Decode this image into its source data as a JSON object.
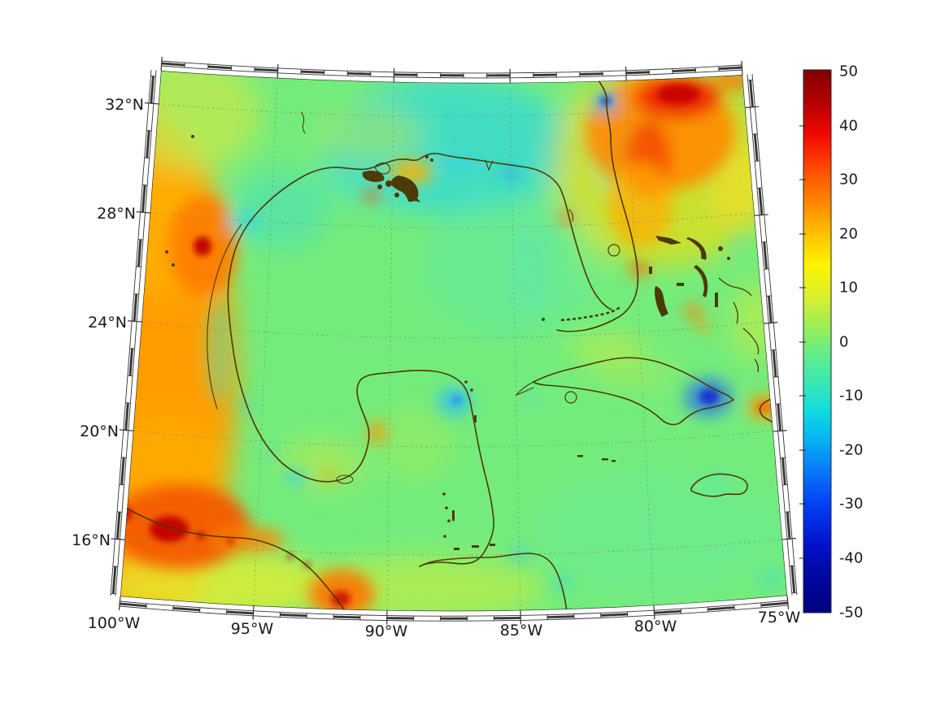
{
  "chart_data": {
    "type": "heatmap",
    "title": "",
    "region": "Gulf of Mexico, western Caribbean and adjacent land areas",
    "projection": "conic (curved graticule, fan-shaped frame)",
    "x_axis": {
      "ticks": [
        "100°W",
        "95°W",
        "90°W",
        "85°W",
        "80°W",
        "75°W"
      ],
      "range_deg_west": [
        100,
        75
      ],
      "grid": true
    },
    "y_axis": {
      "ticks": [
        "16°N",
        "20°N",
        "24°N",
        "28°N",
        "32°N"
      ],
      "range_deg_north": [
        14,
        33.5
      ],
      "grid": true
    },
    "colorbar": {
      "min": -50,
      "max": 50,
      "ticks": [
        50,
        40,
        30,
        20,
        10,
        0,
        -10,
        -20,
        -30,
        -40,
        -50
      ],
      "colormap": "jet",
      "orientation": "vertical",
      "position": "right"
    },
    "field_summary": [
      {
        "feature": "background field over most of Gulf and Caribbean",
        "value": "-5 to +5 (green)"
      },
      {
        "feature": "strong positive anomaly in NW Atlantic east of Georgia / north Florida (~79°W, 31°N)",
        "value": "+30 to +45"
      },
      {
        "feature": "positive band along western map edge over inland Mexico (~99-100°W)",
        "value": "+15 to +30"
      },
      {
        "feature": "intense positive spot on NE Mexico coast (~97.5°W, 26.5°N)",
        "value": "+40"
      },
      {
        "feature": "intense positive blob over southern Mexico / Guatemala (~98°W, 15.5°N)",
        "value": "+35 to +50"
      },
      {
        "feature": "positive spot on Pacific coast of Guatemala (~91.5°W, 14.5°N)",
        "value": "+40"
      },
      {
        "feature": "strong negative spot over SE Cuba (~76.5°W, 20.3°N)",
        "value": "-35"
      },
      {
        "feature": "negative spot on US SE Atlantic coast (~81°W, 31.8°N)",
        "value": "-25"
      },
      {
        "feature": "negative spot at NE tip of Yucatan (~86.8°W, 21.4°N)",
        "value": "-20"
      },
      {
        "feature": "cool patch over north-central Gulf coast (~87-91°W, 29-31°N)",
        "value": "-10"
      },
      {
        "feature": "small positive spots: Mississippi delta, Tampa area, east Florida coast, Bahamas, NW Haiti, Campeche coast",
        "value": "+15 to +30"
      }
    ]
  },
  "axes": {
    "lat": [
      "32°N",
      "28°N",
      "24°N",
      "20°N",
      "16°N"
    ],
    "lon": [
      "100°W",
      "95°W",
      "90°W",
      "85°W",
      "80°W",
      "75°W"
    ]
  },
  "colorbar": {
    "ticks": [
      "50",
      "40",
      "30",
      "20",
      "10",
      "0",
      "-10",
      "-20",
      "-30",
      "-40",
      "-50"
    ]
  },
  "colors": {
    "coastline": "#4c3a08",
    "frame": "#333333",
    "grid": "#808080",
    "background": "#ffffff",
    "cmap_top": "#7f0000",
    "cmap_zero": "#7dee70",
    "cmap_bottom": "#00007f"
  }
}
